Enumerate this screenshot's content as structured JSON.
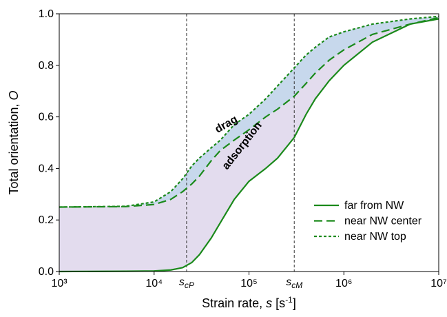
{
  "chart_data": {
    "type": "line",
    "x": [
      1000,
      5000,
      10000,
      15000,
      20000,
      25000,
      30000,
      40000,
      50000,
      70000,
      100000,
      150000,
      200000,
      300000,
      400000,
      500000,
      700000,
      1000000,
      2000000,
      5000000,
      10000000
    ],
    "series": [
      {
        "name": "far from NW",
        "color": "#1b8a1b",
        "dash": "solid",
        "values": [
          0.0,
          0.001,
          0.002,
          0.006,
          0.015,
          0.035,
          0.065,
          0.13,
          0.19,
          0.28,
          0.35,
          0.4,
          0.44,
          0.52,
          0.61,
          0.67,
          0.74,
          0.8,
          0.89,
          0.96,
          0.98
        ]
      },
      {
        "name": "near NW center",
        "color": "#1b8a1b",
        "dash": "long",
        "values": [
          0.25,
          0.252,
          0.26,
          0.28,
          0.31,
          0.34,
          0.37,
          0.43,
          0.47,
          0.51,
          0.55,
          0.6,
          0.63,
          0.68,
          0.73,
          0.77,
          0.82,
          0.86,
          0.92,
          0.96,
          0.985
        ]
      },
      {
        "name": "near NW top",
        "color": "#1b8a1b",
        "dash": "short",
        "values": [
          0.25,
          0.253,
          0.27,
          0.31,
          0.36,
          0.41,
          0.44,
          0.48,
          0.51,
          0.57,
          0.61,
          0.67,
          0.72,
          0.79,
          0.84,
          0.87,
          0.91,
          0.93,
          0.96,
          0.98,
          0.99
        ]
      }
    ],
    "fills": [
      {
        "lower": 0,
        "upper": 1,
        "color": "#e3dcee"
      },
      {
        "lower": 1,
        "upper": 2,
        "color": "#c7d8ec"
      }
    ],
    "x_scale": "log",
    "xlim": [
      1000,
      10000000
    ],
    "xticks": [
      {
        "value": 1000,
        "label": "10³"
      },
      {
        "value": 10000,
        "label": "10⁴"
      },
      {
        "value": 100000,
        "label": "10⁵"
      },
      {
        "value": 1000000,
        "label": "10⁶"
      },
      {
        "value": 10000000,
        "label": "10⁷"
      }
    ],
    "ylim": [
      0,
      1
    ],
    "yticks": [
      {
        "value": 0,
        "label": "0.0"
      },
      0.2,
      0.4,
      0.6,
      0.8,
      {
        "value": 1,
        "label": "1.0"
      }
    ],
    "y_label": [
      "Total orientation, ",
      "O"
    ],
    "x_label": [
      "Strain rate, ",
      "s",
      " [s",
      "-1",
      "]"
    ],
    "vlines": [
      {
        "value": 22000,
        "symbol": "s",
        "sub": "cP"
      },
      {
        "value": 300000,
        "symbol": "s",
        "sub": "cM"
      }
    ],
    "annotations": [
      {
        "text": "drag",
        "x": 60000,
        "y": 0.56,
        "angle": -30
      },
      {
        "text": "adsorption",
        "x": 90000,
        "y": 0.48,
        "angle": -52
      }
    ],
    "legend": "lower right"
  }
}
